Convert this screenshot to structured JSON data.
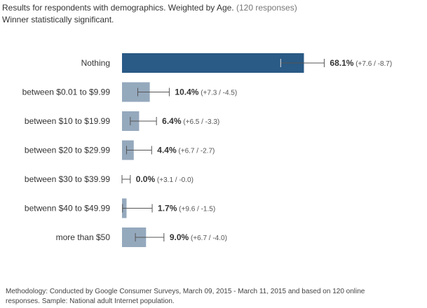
{
  "header": {
    "line1": "Results for respondents with demographics. Weighted by Age.",
    "responses": "(120 responses)",
    "line2": "Winner statistically significant."
  },
  "footer": {
    "methodology": "Methodology: Conducted by Google Consumer Surveys, March 09, 2015 - March 11, 2015 and based on 120 online responses. Sample: National adult Internet population."
  },
  "colors": {
    "winner": "#2a5a86",
    "other": "#95a9bd",
    "error_bar": "#555555"
  },
  "chart_data": {
    "type": "bar",
    "orientation": "horizontal",
    "title": "Results for respondents with demographics. Weighted by Age. (120 responses)",
    "xlim": [
      0,
      100
    ],
    "categories": [
      "Nothing",
      "between $0.01 to $9.99",
      "between $10 to $19.99",
      "between $20 to $29.99",
      "between $30 to $39.99",
      "betwenn $40 to $49.99",
      "more than $50"
    ],
    "values": [
      68.1,
      10.4,
      6.4,
      4.4,
      0.0,
      1.7,
      9.0
    ],
    "value_labels": [
      "68.1%",
      "10.4%",
      "6.4%",
      "4.4%",
      "0.0%",
      "1.7%",
      "9.0%"
    ],
    "error_plus": [
      7.6,
      7.3,
      6.5,
      6.7,
      3.1,
      9.6,
      6.7
    ],
    "error_minus": [
      8.7,
      4.5,
      3.3,
      2.7,
      0.0,
      1.5,
      4.0
    ],
    "error_labels": [
      "(+7.6 / -8.7)",
      "(+7.3 / -4.5)",
      "(+6.5 / -3.3)",
      "(+6.7 / -2.7)",
      "(+3.1 / -0.0)",
      "(+9.6 / -1.5)",
      "(+6.7 / -4.0)"
    ],
    "winner_index": 0
  }
}
